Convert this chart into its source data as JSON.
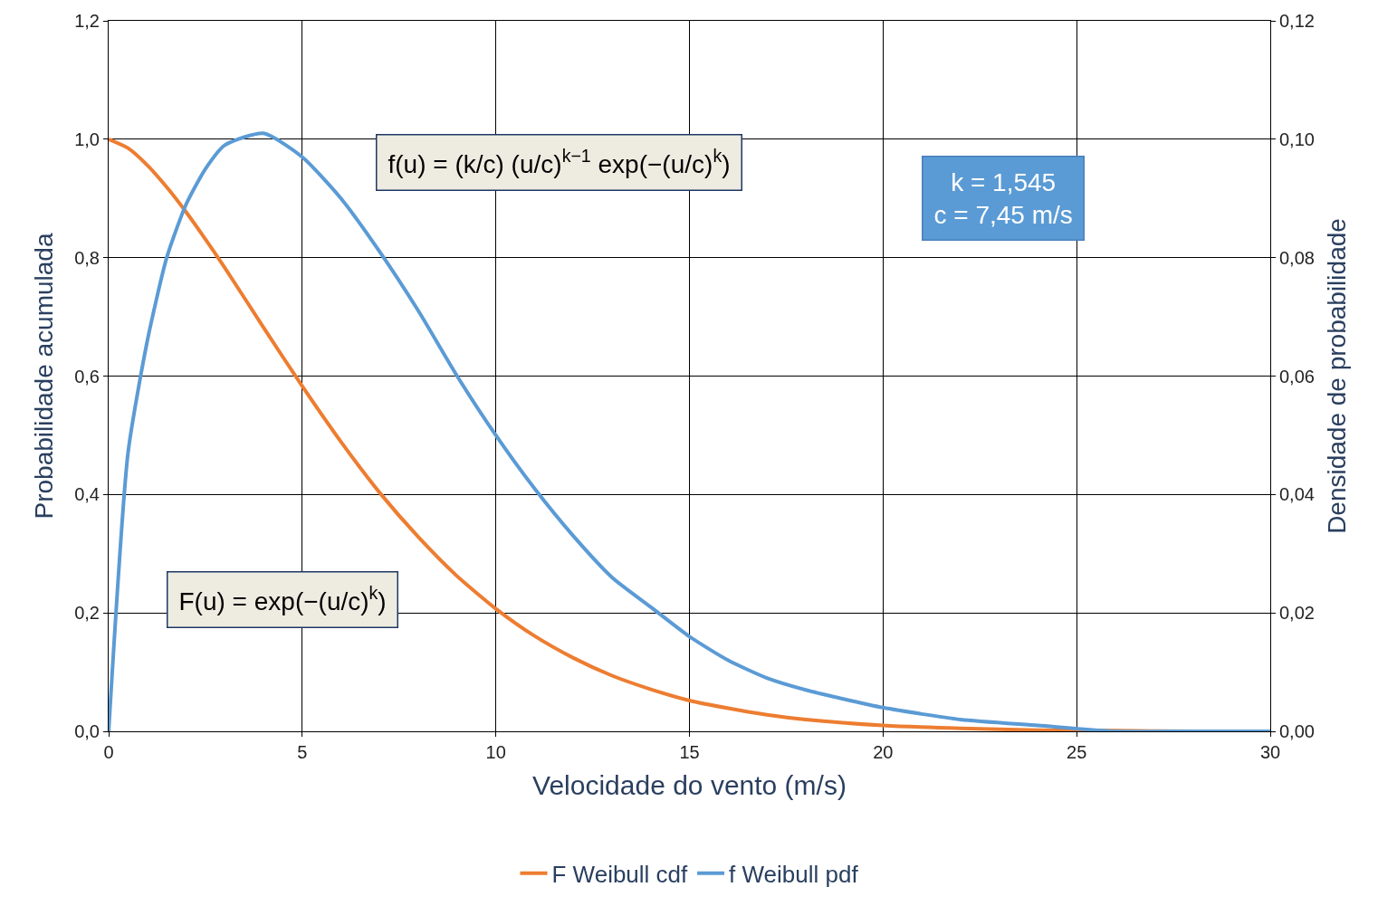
{
  "chart_data": {
    "type": "line",
    "xlabel": "Velocidade do vento (m/s)",
    "ylabel": "Probabilidade acumulada",
    "y2label": "Densidade de probabilidade",
    "x": [
      0,
      0.5,
      1,
      1.5,
      2,
      2.5,
      3,
      4,
      5,
      6,
      7,
      8,
      9,
      10,
      11,
      12,
      13,
      14,
      15,
      16,
      17,
      18,
      20,
      22,
      24,
      26,
      28,
      30
    ],
    "series": [
      {
        "name": "F Weibull cdf",
        "color": "#ed7d31",
        "values": [
          1.0,
          0.985,
          0.956,
          0.919,
          0.877,
          0.831,
          0.783,
          0.682,
          0.583,
          0.489,
          0.403,
          0.328,
          0.262,
          0.207,
          0.161,
          0.124,
          0.094,
          0.071,
          0.052,
          0.039,
          0.028,
          0.02,
          0.01,
          0.005,
          0.002,
          0.001,
          0.0,
          0.0
        ]
      },
      {
        "name": "f Weibull pdf",
        "color": "#5b9bd5",
        "axis": "y2",
        "values": [
          0.0,
          0.047,
          0.066,
          0.08,
          0.089,
          0.095,
          0.099,
          0.101,
          0.097,
          0.09,
          0.081,
          0.071,
          0.06,
          0.05,
          0.041,
          0.033,
          0.026,
          0.021,
          0.016,
          0.012,
          0.009,
          0.007,
          0.004,
          0.002,
          0.001,
          0.0,
          0.0,
          0.0
        ]
      }
    ],
    "xlim": [
      0,
      30
    ],
    "xticks": [
      0,
      5,
      10,
      15,
      20,
      25,
      30
    ],
    "ylim": [
      0,
      1.2
    ],
    "yticks": [
      {
        "value": 0,
        "label": "0,0"
      },
      {
        "value": 0.2,
        "label": "0,2"
      },
      {
        "value": 0.4,
        "label": "0,4"
      },
      {
        "value": 0.6,
        "label": "0,6"
      },
      {
        "value": 0.8,
        "label": "0,8"
      },
      {
        "value": 1.0,
        "label": "1,0"
      },
      {
        "value": 1.2,
        "label": "1,2"
      }
    ],
    "y2lim": [
      0,
      0.12
    ],
    "y2ticks": [
      {
        "value": 0,
        "label": "0,00"
      },
      {
        "value": 0.02,
        "label": "0,02"
      },
      {
        "value": 0.04,
        "label": "0,04"
      },
      {
        "value": 0.06,
        "label": "0,06"
      },
      {
        "value": 0.08,
        "label": "0,08"
      },
      {
        "value": 0.1,
        "label": "0,10"
      },
      {
        "value": 0.12,
        "label": "0,12"
      }
    ],
    "annotations": [
      "f(u) = (k/c) (u/c)$^{k−1}$ exp(−(u/c)$^{k}$)",
      "F(u) = exp(−(u/c)$^{k}$)",
      "k = 1,545\nc = 7,45 m/s"
    ],
    "grid": true,
    "legend": "bottom",
    "marker": "none",
    "line_style": "solid"
  }
}
